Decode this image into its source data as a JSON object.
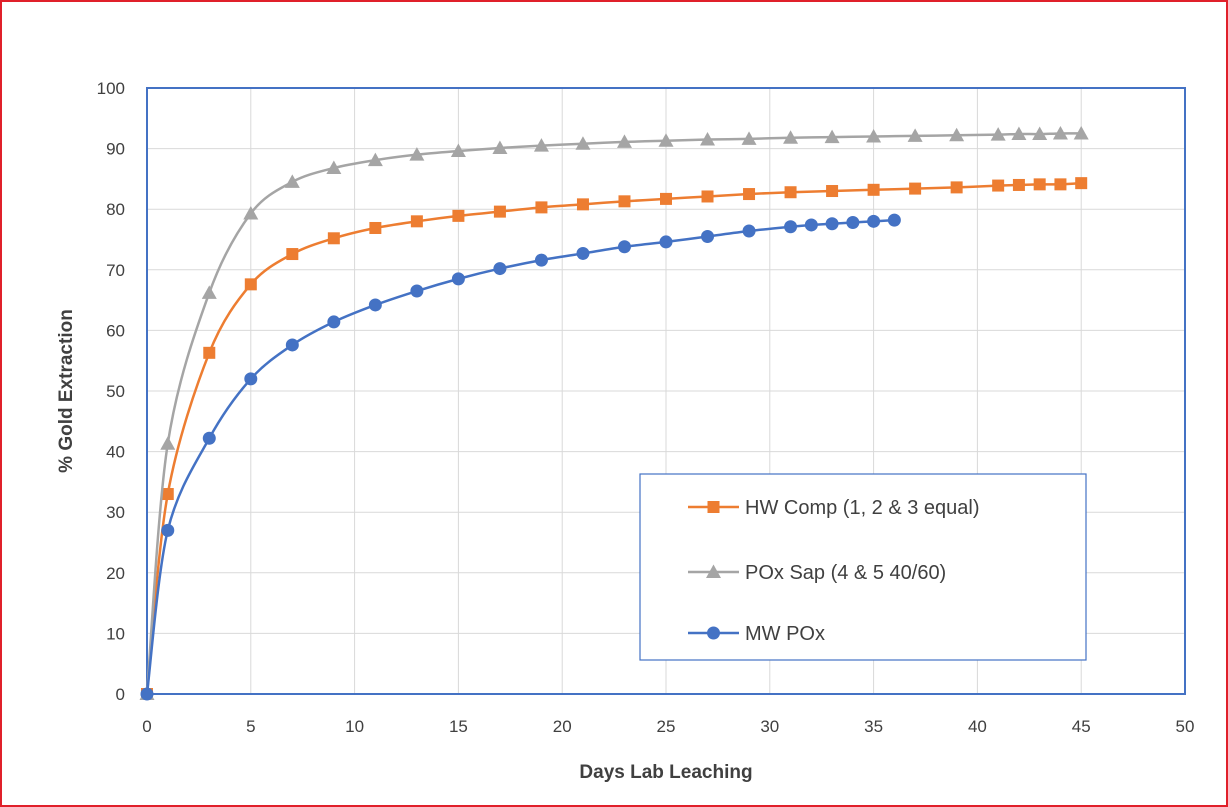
{
  "chart_data": {
    "type": "line",
    "title": "",
    "xlabel": "Days Lab Leaching",
    "ylabel": "% Gold Extraction",
    "xlim": [
      0,
      50
    ],
    "ylim": [
      0,
      100
    ],
    "xticks": [
      "0",
      "5",
      "10",
      "15",
      "20",
      "25",
      "30",
      "35",
      "40",
      "45",
      "50"
    ],
    "yticks": [
      "0",
      "10",
      "20",
      "30",
      "40",
      "50",
      "60",
      "70",
      "80",
      "90",
      "100"
    ],
    "grid": true,
    "legend_position": "bottom-right",
    "series": [
      {
        "name": "HW Comp (1, 2 & 3 equal)",
        "color": "#ed7d31",
        "marker": "square",
        "x": [
          0,
          1,
          3,
          5,
          7,
          9,
          11,
          13,
          15,
          17,
          19,
          21,
          23,
          25,
          27,
          29,
          31,
          33,
          35,
          37,
          39,
          41,
          42,
          43,
          44,
          45
        ],
        "y": [
          0,
          33,
          56.3,
          67.6,
          72.6,
          75.2,
          76.9,
          78,
          78.9,
          79.6,
          80.3,
          80.8,
          81.3,
          81.7,
          82.1,
          82.5,
          82.8,
          83,
          83.2,
          83.4,
          83.6,
          83.9,
          84,
          84.1,
          84.1,
          84.3
        ]
      },
      {
        "name": "POx Sap (4 & 5 40/60)",
        "color": "#a5a5a5",
        "marker": "triangle",
        "x": [
          0,
          1,
          3,
          5,
          7,
          9,
          11,
          13,
          15,
          17,
          19,
          21,
          23,
          25,
          27,
          29,
          31,
          33,
          35,
          37,
          39,
          41,
          42,
          43,
          44,
          45
        ],
        "y": [
          0,
          41.3,
          66.2,
          79.3,
          84.5,
          86.8,
          88.1,
          89,
          89.6,
          90.1,
          90.5,
          90.8,
          91.1,
          91.3,
          91.5,
          91.6,
          91.8,
          91.9,
          92,
          92.1,
          92.2,
          92.3,
          92.4,
          92.4,
          92.5,
          92.5
        ]
      },
      {
        "name": "MW POx",
        "color": "#4472c4",
        "marker": "circle",
        "x": [
          0,
          1,
          3,
          5,
          7,
          9,
          11,
          13,
          15,
          17,
          19,
          21,
          23,
          25,
          27,
          29,
          31,
          32,
          33,
          34,
          35,
          36
        ],
        "y": [
          0,
          27,
          42.2,
          52,
          57.6,
          61.4,
          64.2,
          66.5,
          68.5,
          70.2,
          71.6,
          72.7,
          73.8,
          74.6,
          75.5,
          76.4,
          77.1,
          77.4,
          77.6,
          77.8,
          78,
          78.2
        ]
      }
    ]
  }
}
